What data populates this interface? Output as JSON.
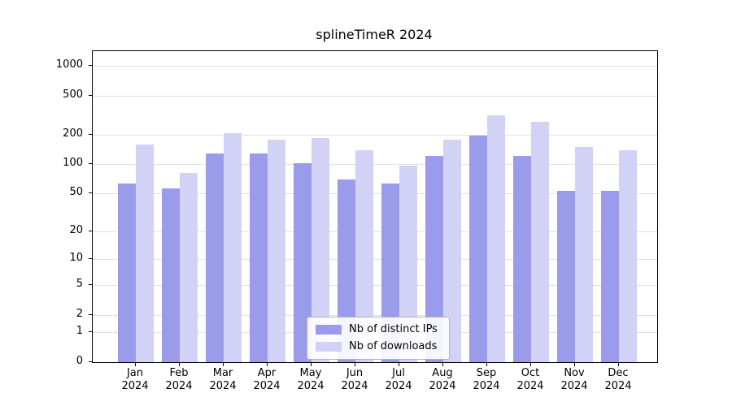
{
  "chart_data": {
    "type": "bar",
    "title": "splineTimeR 2024",
    "year": "2024",
    "categories": [
      "Jan",
      "Feb",
      "Mar",
      "Apr",
      "May",
      "Jun",
      "Jul",
      "Aug",
      "Sep",
      "Oct",
      "Nov",
      "Dec"
    ],
    "series": [
      {
        "name": "Nb of distinct IPs",
        "color": "#9b9bec",
        "values": [
          64,
          57,
          130,
          129,
          103,
          70,
          63,
          121,
          196,
          122,
          53,
          53
        ]
      },
      {
        "name": "Nb of downloads",
        "color": "#d2d2f7",
        "values": [
          160,
          82,
          207,
          177,
          185,
          139,
          97,
          178,
          314,
          272,
          150,
          139
        ]
      }
    ],
    "yticks": [
      0,
      1,
      2,
      5,
      10,
      20,
      50,
      100,
      200,
      500,
      1000
    ],
    "scale": "log10(1+x)",
    "ylim": [
      0,
      1000
    ],
    "grid": true,
    "legend_position": "bottom-center-inside"
  }
}
